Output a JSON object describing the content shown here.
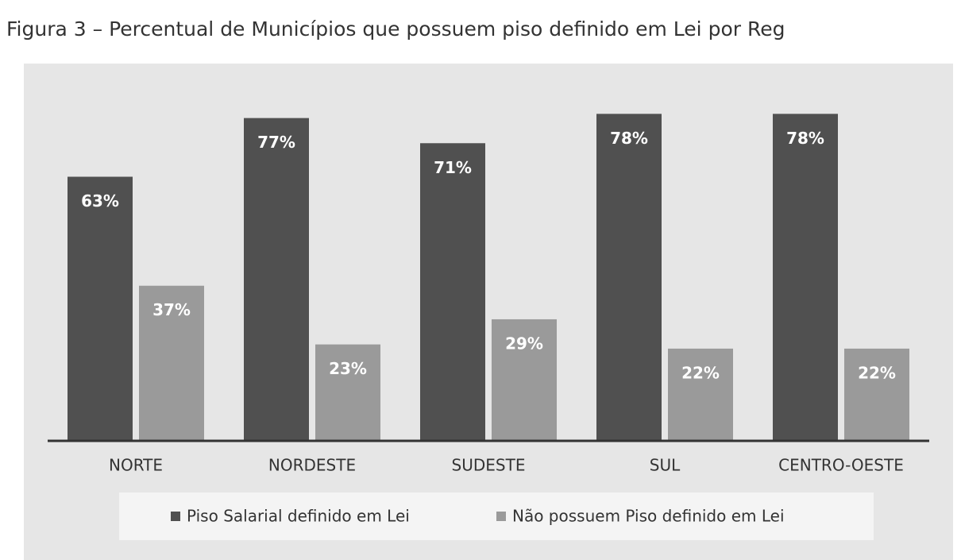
{
  "chart_data": {
    "type": "bar",
    "title": "Figura 3 – Percentual de Municípios que possuem piso definido em Lei por Reg",
    "categories": [
      "NORTE",
      "NORDESTE",
      "SUDESTE",
      "SUL",
      "CENTRO-OESTE"
    ],
    "series": [
      {
        "name": "Piso Salarial definido em Lei",
        "color": "#505050",
        "values": [
          63,
          77,
          71,
          78,
          78
        ],
        "value_labels": [
          "63%",
          "77%",
          "71%",
          "78%",
          "78%"
        ]
      },
      {
        "name": "Não possuem Piso definido em Lei",
        "color": "#9a9a9a",
        "values": [
          37,
          23,
          29,
          22,
          22
        ],
        "value_labels": [
          "37%",
          "23%",
          "29%",
          "22%",
          "22%"
        ]
      }
    ],
    "ylim": [
      0,
      90
    ]
  }
}
